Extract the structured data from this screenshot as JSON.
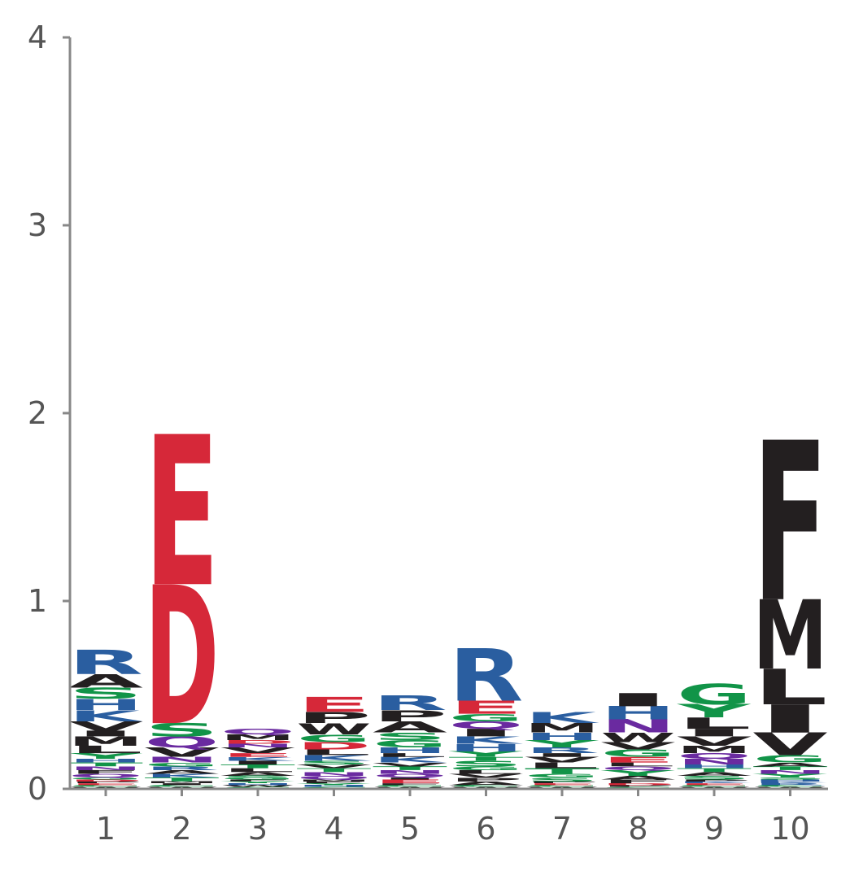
{
  "chart_data": {
    "type": "sequence-logo",
    "title": "",
    "xlabel": "",
    "ylabel": "",
    "ylim": [
      0,
      4
    ],
    "yticks": [
      0,
      1,
      2,
      3,
      4
    ],
    "positions": [
      1,
      2,
      3,
      4,
      5,
      6,
      7,
      8,
      9,
      10
    ],
    "colors": {
      "acidic": "#d62839",
      "basic": "#2a5ea0",
      "polar": "#119448",
      "amide": "#6a2aa0",
      "hydrophobic": "#231f20"
    },
    "stacks": [
      [
        [
          "W",
          0.01,
          "hydrophobic"
        ],
        [
          "C",
          0.01,
          "polar"
        ],
        [
          "E",
          0.01,
          "acidic"
        ],
        [
          "P",
          0.01,
          "hydrophobic"
        ],
        [
          "D",
          0.01,
          "acidic"
        ],
        [
          "G",
          0.01,
          "polar"
        ],
        [
          "Q",
          0.02,
          "amide"
        ],
        [
          "F",
          0.02,
          "hydrophobic"
        ],
        [
          "N",
          0.02,
          "amide"
        ],
        [
          "T",
          0.02,
          "polar"
        ],
        [
          "H",
          0.02,
          "basic"
        ],
        [
          "Y",
          0.03,
          "polar"
        ],
        [
          "L",
          0.04,
          "hydrophobic"
        ],
        [
          "M",
          0.05,
          "hydrophobic"
        ],
        [
          "I",
          0.03,
          "hydrophobic"
        ],
        [
          "V",
          0.05,
          "hydrophobic"
        ],
        [
          "K",
          0.06,
          "basic"
        ],
        [
          "H",
          0.06,
          "basic"
        ],
        [
          "S",
          0.06,
          "polar"
        ],
        [
          "A",
          0.07,
          "hydrophobic"
        ],
        [
          "R",
          0.13,
          "basic"
        ]
      ],
      [
        [
          "W",
          0.01,
          "hydrophobic"
        ],
        [
          "C",
          0.01,
          "polar"
        ],
        [
          "I",
          0.01,
          "hydrophobic"
        ],
        [
          "M",
          0.01,
          "hydrophobic"
        ],
        [
          "T",
          0.02,
          "polar"
        ],
        [
          "K",
          0.02,
          "basic"
        ],
        [
          "A",
          0.02,
          "hydrophobic"
        ],
        [
          "R",
          0.02,
          "basic"
        ],
        [
          "G",
          0.02,
          "polar"
        ],
        [
          "N",
          0.03,
          "amide"
        ],
        [
          "V",
          0.05,
          "hydrophobic"
        ],
        [
          "Q",
          0.06,
          "amide"
        ],
        [
          "S",
          0.07,
          "polar"
        ],
        [
          "D",
          0.74,
          "acidic"
        ],
        [
          "E",
          0.8,
          "acidic"
        ]
      ],
      [
        [
          "C",
          0.01,
          "polar"
        ],
        [
          "W",
          0.01,
          "hydrophobic"
        ],
        [
          "H",
          0.01,
          "basic"
        ],
        [
          "Y",
          0.01,
          "polar"
        ],
        [
          "F",
          0.01,
          "hydrophobic"
        ],
        [
          "G",
          0.01,
          "polar"
        ],
        [
          "S",
          0.01,
          "polar"
        ],
        [
          "A",
          0.02,
          "hydrophobic"
        ],
        [
          "L",
          0.02,
          "hydrophobic"
        ],
        [
          "T",
          0.02,
          "polar"
        ],
        [
          "I",
          0.02,
          "hydrophobic"
        ],
        [
          "K",
          0.02,
          "basic"
        ],
        [
          "E",
          0.02,
          "acidic"
        ],
        [
          "V",
          0.03,
          "hydrophobic"
        ],
        [
          "N",
          0.02,
          "amide"
        ],
        [
          "D",
          0.02,
          "acidic"
        ],
        [
          "M",
          0.03,
          "hydrophobic"
        ],
        [
          "Q",
          0.03,
          "amide"
        ]
      ],
      [
        [
          "C",
          0.01,
          "polar"
        ],
        [
          "H",
          0.01,
          "basic"
        ],
        [
          "Y",
          0.01,
          "polar"
        ],
        [
          "F",
          0.01,
          "hydrophobic"
        ],
        [
          "M",
          0.01,
          "hydrophobic"
        ],
        [
          "Q",
          0.02,
          "amide"
        ],
        [
          "N",
          0.02,
          "amide"
        ],
        [
          "T",
          0.02,
          "polar"
        ],
        [
          "V",
          0.02,
          "hydrophobic"
        ],
        [
          "S",
          0.02,
          "polar"
        ],
        [
          "K",
          0.03,
          "basic"
        ],
        [
          "L",
          0.03,
          "hydrophobic"
        ],
        [
          "D",
          0.04,
          "acidic"
        ],
        [
          "G",
          0.04,
          "polar"
        ],
        [
          "W",
          0.06,
          "hydrophobic"
        ],
        [
          "P",
          0.06,
          "hydrophobic"
        ],
        [
          "E",
          0.08,
          "acidic"
        ]
      ],
      [
        [
          "W",
          0.01,
          "hydrophobic"
        ],
        [
          "C",
          0.01,
          "polar"
        ],
        [
          "F",
          0.01,
          "hydrophobic"
        ],
        [
          "E",
          0.02,
          "acidic"
        ],
        [
          "I",
          0.01,
          "hydrophobic"
        ],
        [
          "Q",
          0.02,
          "amide"
        ],
        [
          "N",
          0.02,
          "amide"
        ],
        [
          "T",
          0.02,
          "polar"
        ],
        [
          "V",
          0.02,
          "hydrophobic"
        ],
        [
          "K",
          0.03,
          "basic"
        ],
        [
          "L",
          0.02,
          "hydrophobic"
        ],
        [
          "H",
          0.03,
          "basic"
        ],
        [
          "G",
          0.04,
          "polar"
        ],
        [
          "S",
          0.04,
          "polar"
        ],
        [
          "A",
          0.06,
          "hydrophobic"
        ],
        [
          "P",
          0.06,
          "hydrophobic"
        ],
        [
          "R",
          0.08,
          "basic"
        ]
      ],
      [
        [
          "W",
          0.01,
          "hydrophobic"
        ],
        [
          "C",
          0.01,
          "polar"
        ],
        [
          "A",
          0.02,
          "hydrophobic"
        ],
        [
          "P",
          0.02,
          "hydrophobic"
        ],
        [
          "V",
          0.02,
          "hydrophobic"
        ],
        [
          "L",
          0.02,
          "hydrophobic"
        ],
        [
          "G",
          0.02,
          "polar"
        ],
        [
          "S",
          0.03,
          "polar"
        ],
        [
          "T",
          0.02,
          "polar"
        ],
        [
          "Y",
          0.03,
          "polar"
        ],
        [
          "H",
          0.04,
          "basic"
        ],
        [
          "K",
          0.04,
          "basic"
        ],
        [
          "I",
          0.04,
          "hydrophobic"
        ],
        [
          "Q",
          0.04,
          "amide"
        ],
        [
          "G",
          0.04,
          "polar"
        ],
        [
          "E",
          0.07,
          "acidic"
        ],
        [
          "R",
          0.28,
          "basic"
        ]
      ],
      [
        [
          "W",
          0.01,
          "hydrophobic"
        ],
        [
          "C",
          0.01,
          "polar"
        ],
        [
          "E",
          0.01,
          "acidic"
        ],
        [
          "P",
          0.01,
          "hydrophobic"
        ],
        [
          "S",
          0.02,
          "polar"
        ],
        [
          "G",
          0.02,
          "polar"
        ],
        [
          "T",
          0.03,
          "polar"
        ],
        [
          "L",
          0.03,
          "hydrophobic"
        ],
        [
          "V",
          0.03,
          "hydrophobic"
        ],
        [
          "I",
          0.02,
          "hydrophobic"
        ],
        [
          "R",
          0.03,
          "basic"
        ],
        [
          "Y",
          0.04,
          "polar"
        ],
        [
          "H",
          0.04,
          "basic"
        ],
        [
          "M",
          0.05,
          "hydrophobic"
        ],
        [
          "K",
          0.06,
          "basic"
        ]
      ],
      [
        [
          "C",
          0.01,
          "polar"
        ],
        [
          "P",
          0.01,
          "hydrophobic"
        ],
        [
          "D",
          0.01,
          "acidic"
        ],
        [
          "F",
          0.02,
          "hydrophobic"
        ],
        [
          "A",
          0.02,
          "hydrophobic"
        ],
        [
          "Y",
          0.03,
          "polar"
        ],
        [
          "Q",
          0.02,
          "amide"
        ],
        [
          "L",
          0.02,
          "hydrophobic"
        ],
        [
          "E",
          0.03,
          "acidic"
        ],
        [
          "G",
          0.04,
          "polar"
        ],
        [
          "V",
          0.04,
          "hydrophobic"
        ],
        [
          "W",
          0.05,
          "hydrophobic"
        ],
        [
          "N",
          0.07,
          "amide"
        ],
        [
          "H",
          0.07,
          "basic"
        ],
        [
          "I",
          0.07,
          "hydrophobic"
        ]
      ],
      [
        [
          "W",
          0.01,
          "hydrophobic"
        ],
        [
          "C",
          0.01,
          "polar"
        ],
        [
          "E",
          0.01,
          "acidic"
        ],
        [
          "K",
          0.01,
          "basic"
        ],
        [
          "P",
          0.01,
          "hydrophobic"
        ],
        [
          "S",
          0.02,
          "polar"
        ],
        [
          "A",
          0.02,
          "hydrophobic"
        ],
        [
          "T",
          0.02,
          "polar"
        ],
        [
          "H",
          0.02,
          "basic"
        ],
        [
          "N",
          0.03,
          "amide"
        ],
        [
          "Q",
          0.03,
          "amide"
        ],
        [
          "M",
          0.04,
          "hydrophobic"
        ],
        [
          "V",
          0.05,
          "hydrophobic"
        ],
        [
          "I",
          0.04,
          "hydrophobic"
        ],
        [
          "L",
          0.06,
          "hydrophobic"
        ],
        [
          "Y",
          0.07,
          "polar"
        ],
        [
          "G",
          0.11,
          "polar"
        ]
      ],
      [
        [
          "W",
          0.01,
          "hydrophobic"
        ],
        [
          "C",
          0.01,
          "polar"
        ],
        [
          "R",
          0.01,
          "basic"
        ],
        [
          "K",
          0.01,
          "basic"
        ],
        [
          "H",
          0.01,
          "basic"
        ],
        [
          "S",
          0.01,
          "polar"
        ],
        [
          "Y",
          0.02,
          "polar"
        ],
        [
          "N",
          0.02,
          "amide"
        ],
        [
          "T",
          0.02,
          "polar"
        ],
        [
          "A",
          0.02,
          "hydrophobic"
        ],
        [
          "G",
          0.04,
          "polar"
        ],
        [
          "V",
          0.12,
          "hydrophobic"
        ],
        [
          "I",
          0.15,
          "hydrophobic"
        ],
        [
          "L",
          0.19,
          "hydrophobic"
        ],
        [
          "M",
          0.37,
          "hydrophobic"
        ],
        [
          "F",
          0.85,
          "hydrophobic"
        ]
      ]
    ]
  }
}
